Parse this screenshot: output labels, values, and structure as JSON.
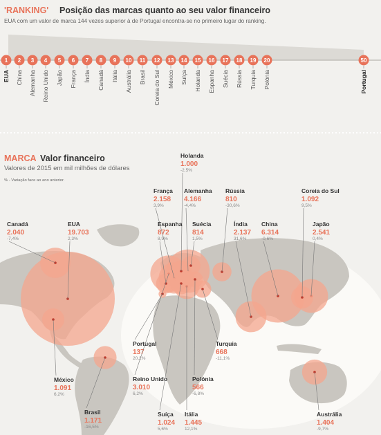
{
  "ranking": {
    "title_accent": "'RANKING'",
    "title_main": "Posição das marcas quanto ao seu valor financeiro",
    "subtitle": "EUA com um valor de marca 144 vezes superior à de Portugal encontra-se no primeiro lugar do ranking.",
    "items": [
      {
        "rank": "1",
        "country": "EUA"
      },
      {
        "rank": "2",
        "country": "China"
      },
      {
        "rank": "3",
        "country": "Alemanha"
      },
      {
        "rank": "4",
        "country": "Reino Unido"
      },
      {
        "rank": "5",
        "country": "Japão"
      },
      {
        "rank": "6",
        "country": "França"
      },
      {
        "rank": "7",
        "country": "Índia"
      },
      {
        "rank": "8",
        "country": "Canadá"
      },
      {
        "rank": "9",
        "country": "Itália"
      },
      {
        "rank": "10",
        "country": "Austrália"
      },
      {
        "rank": "11",
        "country": "Brasil"
      },
      {
        "rank": "12",
        "country": "Coreia do Sul"
      },
      {
        "rank": "13",
        "country": "México"
      },
      {
        "rank": "14",
        "country": "Suíça"
      },
      {
        "rank": "15",
        "country": "Holanda"
      },
      {
        "rank": "16",
        "country": "Espanha"
      },
      {
        "rank": "17",
        "country": "Suécia"
      },
      {
        "rank": "18",
        "country": "Rússia"
      },
      {
        "rank": "19",
        "country": "Turquia"
      },
      {
        "rank": "20",
        "country": "Polónia"
      },
      {
        "rank": "50",
        "country": "Portugal"
      }
    ]
  },
  "map": {
    "title_accent": "MARCA",
    "title_main": "Valor financeiro",
    "subtitle": "Valores de 2015 em mil milhões de dólares",
    "note": "% - Variação face ao ano anterior."
  },
  "colors": {
    "accent": "#e8735a",
    "bubble": "#f4a58e",
    "land": "#c9c6c0",
    "background": "#f2f1ee"
  },
  "chart_data": {
    "type": "bubble-map",
    "unit": "mil milhões de dólares",
    "countries": [
      {
        "name": "EUA",
        "value": 19703,
        "value_label": "19.703",
        "change": "2,3%"
      },
      {
        "name": "Canadá",
        "value": 2040,
        "value_label": "2.040",
        "change": "-7,4%"
      },
      {
        "name": "México",
        "value": 1091,
        "value_label": "1.091",
        "change": "6,2%"
      },
      {
        "name": "Brasil",
        "value": 1171,
        "value_label": "1.171",
        "change": "-16,5%"
      },
      {
        "name": "Holanda",
        "value": 1000,
        "value_label": "1.000",
        "change": "-2,5%"
      },
      {
        "name": "França",
        "value": 2158,
        "value_label": "2.158",
        "change": "3,9%"
      },
      {
        "name": "Alemanha",
        "value": 4166,
        "value_label": "4.166",
        "change": "-4,4%"
      },
      {
        "name": "Rússia",
        "value": 810,
        "value_label": "810",
        "change": "-30,6%"
      },
      {
        "name": "Coreia do Sul",
        "value": 1092,
        "value_label": "1.092",
        "change": "9,5%"
      },
      {
        "name": "Espanha",
        "value": 872,
        "value_label": "872",
        "change": "8,9%"
      },
      {
        "name": "Suécia",
        "value": 814,
        "value_label": "814",
        "change": "1,5%"
      },
      {
        "name": "Índia",
        "value": 2137,
        "value_label": "2.137",
        "change": "31,6%"
      },
      {
        "name": "China",
        "value": 6314,
        "value_label": "6.314",
        "change": "-0,6%"
      },
      {
        "name": "Japão",
        "value": 2541,
        "value_label": "2.541",
        "change": "0,4%"
      },
      {
        "name": "Portugal",
        "value": 137,
        "value_label": "137",
        "change": "20,2%"
      },
      {
        "name": "Turquia",
        "value": 668,
        "value_label": "668",
        "change": "-11,1%"
      },
      {
        "name": "Reino Unido",
        "value": 3010,
        "value_label": "3.010",
        "change": "6,2%"
      },
      {
        "name": "Polónia",
        "value": 566,
        "value_label": "566",
        "change": "-6,8%"
      },
      {
        "name": "Austrália",
        "value": 1404,
        "value_label": "1.404",
        "change": "-9,7%"
      },
      {
        "name": "Suíça",
        "value": 1024,
        "value_label": "1.024",
        "change": "5,6%"
      },
      {
        "name": "Itália",
        "value": 1445,
        "value_label": "1.445",
        "change": "12,1%"
      }
    ]
  }
}
